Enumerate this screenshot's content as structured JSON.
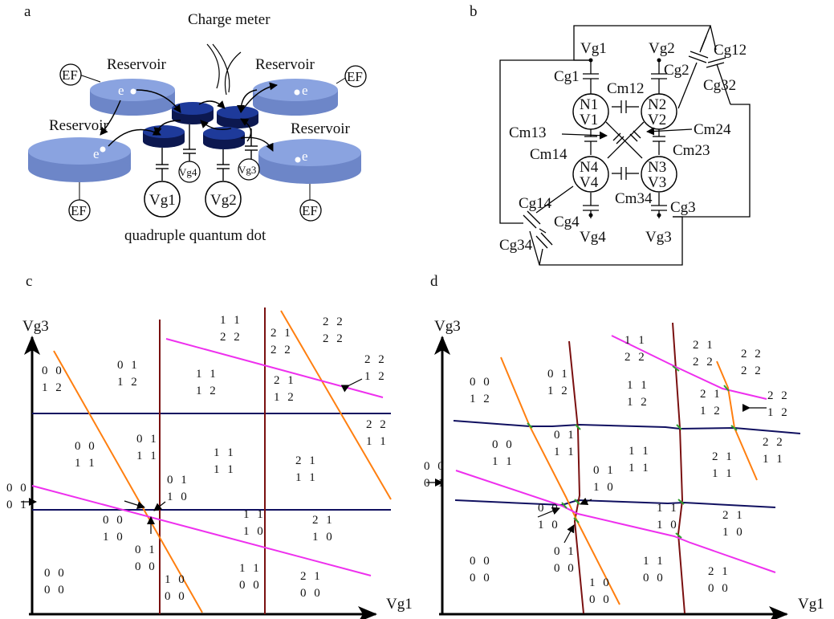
{
  "panels": {
    "a": "a",
    "b": "b",
    "c": "c",
    "d": "d"
  },
  "panel_a": {
    "charge_meter": "Charge meter",
    "reservoir": "Reservoir",
    "ef": "EF",
    "electron": "e",
    "gates": [
      "Vg1",
      "Vg2",
      "Vg3",
      "Vg4"
    ],
    "caption": "quadruple quantum dot",
    "colors": {
      "reservoir": "#8aa3e0",
      "dot": "#102060"
    }
  },
  "panel_b": {
    "gates": {
      "vg1": "Vg1",
      "vg2": "Vg2",
      "vg3": "Vg3",
      "vg4": "Vg4"
    },
    "dots": {
      "n1": "N1",
      "v1": "V1",
      "n2": "N2",
      "v2": "V2",
      "n3": "N3",
      "v3": "V3",
      "n4": "N4",
      "v4": "V4"
    },
    "caps": {
      "cg1": "Cg1",
      "cg2": "Cg2",
      "cg3": "Cg3",
      "cg4": "Cg4",
      "cg12": "Cg12",
      "cg32": "Cg32",
      "cg14": "Cg14",
      "cg34": "Cg34",
      "cm12": "Cm12",
      "cm13": "Cm13",
      "cm14": "Cm14",
      "cm23": "Cm23",
      "cm24": "Cm24",
      "cm34": "Cm34"
    }
  },
  "axes": {
    "x": "Vg1",
    "y": "Vg3"
  },
  "panel_c": {
    "states": [
      {
        "t": "0 0",
        "b": "1 2"
      },
      {
        "t": "0 1",
        "b": "1 2"
      },
      {
        "t": "1 1",
        "b": "2 2"
      },
      {
        "t": "1 1",
        "b": "1 2"
      },
      {
        "t": "2 1",
        "b": "2 2"
      },
      {
        "t": "2 2",
        "b": "2 2"
      },
      {
        "t": "2 1",
        "b": "1 2"
      },
      {
        "t": "2 2",
        "b": "1 2"
      },
      {
        "t": "2 2",
        "b": "1 1"
      },
      {
        "t": "0 0",
        "b": "1 1"
      },
      {
        "t": "0 1",
        "b": "1 1"
      },
      {
        "t": "1 1",
        "b": "1 1"
      },
      {
        "t": "2 1",
        "b": "1 1"
      },
      {
        "t": "0 1",
        "b": "1 0"
      },
      {
        "t": "0 0",
        "b": "0 1"
      },
      {
        "t": "0 0",
        "b": "1 0"
      },
      {
        "t": "1 1",
        "b": "1 0"
      },
      {
        "t": "2 1",
        "b": "1 0"
      },
      {
        "t": "0 1",
        "b": "0 0"
      },
      {
        "t": "0 0",
        "b": "0 0"
      },
      {
        "t": "1 1",
        "b": "0 0"
      },
      {
        "t": "2 1",
        "b": "0 0"
      },
      {
        "t": "1 0",
        "b": "0 0"
      }
    ]
  },
  "panel_d": {
    "states": [
      {
        "t": "1 1",
        "b": "2 2"
      },
      {
        "t": "2 1",
        "b": "2 2"
      },
      {
        "t": "2 2",
        "b": "2 2"
      },
      {
        "t": "0 0",
        "b": "1 2"
      },
      {
        "t": "0 1",
        "b": "1 2"
      },
      {
        "t": "1 1",
        "b": "1 2"
      },
      {
        "t": "2 1",
        "b": "1 2"
      },
      {
        "t": "2 2",
        "b": "1 2"
      },
      {
        "t": "0 0",
        "b": "1 1"
      },
      {
        "t": "0 1",
        "b": "1 1"
      },
      {
        "t": "1 1",
        "b": "1 1"
      },
      {
        "t": "2 1",
        "b": "1 1"
      },
      {
        "t": "2 2",
        "b": "1 1"
      },
      {
        "t": "0 0",
        "b": "0 1"
      },
      {
        "t": "0 1",
        "b": "1 0"
      },
      {
        "t": "0 0",
        "b": "1 0"
      },
      {
        "t": "1 1",
        "b": "1 0"
      },
      {
        "t": "2 1",
        "b": "1 0"
      },
      {
        "t": "0 1",
        "b": "0 0"
      },
      {
        "t": "0 0",
        "b": "0 0"
      },
      {
        "t": "1 1",
        "b": "0 0"
      },
      {
        "t": "2 1",
        "b": "0 0"
      },
      {
        "t": "1 0",
        "b": "0 0"
      }
    ]
  },
  "line_colors": {
    "vg1_lines": "#7a1010",
    "vg3_lines": "#101060",
    "orange": "#ff7f10",
    "magenta": "#ee30ee"
  }
}
